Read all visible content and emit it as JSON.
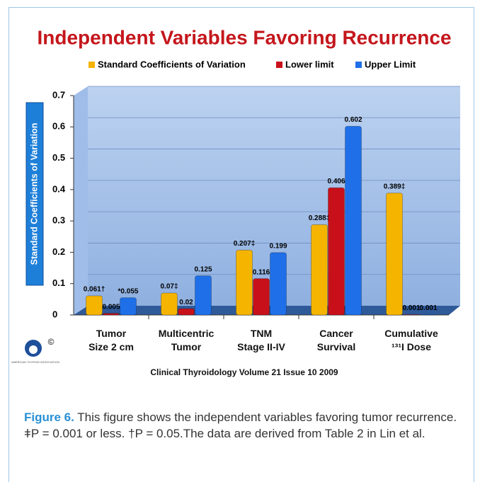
{
  "chart_data": {
    "type": "bar",
    "title": "Independent Variables Favoring Recurrence",
    "ylabel": "Standard Coefficients of Variation",
    "categories": [
      "Tumor\nSize 2 cm",
      "Multicentric\nTumor",
      "TNM\nStage II-IV",
      "Cancer\nSurvival",
      "Cumulative\n¹³¹I Dose"
    ],
    "series": [
      {
        "name": "Standard Coefficients of Variation",
        "color": "#f5b400",
        "values": [
          0.061,
          0.07,
          0.207,
          0.288,
          0.389
        ],
        "value_labels": [
          "0.061†",
          "0.07‡",
          "0.207‡",
          "0.288‡",
          "0.389‡"
        ]
      },
      {
        "name": "Lower limit",
        "color": "#c8101a",
        "values": [
          0.005,
          0.02,
          0.116,
          0.406,
          0.001
        ],
        "value_labels": [
          "0.005",
          "0.02",
          "0.116",
          "0.406",
          "0.001"
        ]
      },
      {
        "name": "Upper Limit",
        "color": "#1f6fe8",
        "values": [
          0.055,
          0.125,
          0.199,
          0.602,
          0.001
        ],
        "value_labels": [
          "*0.055",
          "0.125",
          "0.199",
          "0.602",
          "0.001"
        ]
      }
    ],
    "ylim": [
      0,
      0.7
    ],
    "yticks": [
      0,
      0.1,
      0.2,
      0.3,
      0.4,
      0.5,
      0.6,
      0.7
    ],
    "grid": true,
    "legend": "top",
    "source": "Clinical Thyroidology Volume 21 Issue 10 2009"
  },
  "logo": {
    "text": "AMERICAN THYROID ASSOCIATION",
    "mark": "©"
  },
  "caption": {
    "label": "Figure 6.",
    "text": " This figure shows the independent variables favoring tumor recurrence. ǂP = 0.001 or less. †P = 0.05.The data are derived from Table 2 in Lin et al."
  }
}
